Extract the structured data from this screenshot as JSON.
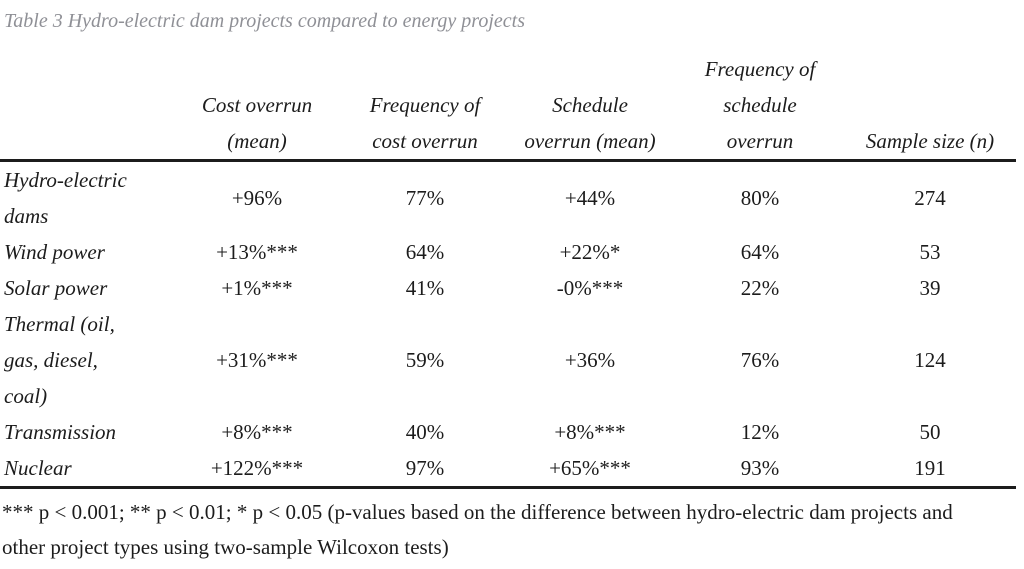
{
  "caption": "Table 3 Hydro-electric dam projects compared to energy projects",
  "columns": [
    "",
    "Cost overrun\n(mean)",
    "Frequency of\ncost overrun",
    "Schedule\noverrun (mean)",
    "Frequency of\nschedule\noverrun",
    "Sample size (n)"
  ],
  "rows": [
    {
      "label": "Hydro-electric\ndams",
      "values": [
        "+96%",
        "77%",
        "+44%",
        "80%",
        "274"
      ]
    },
    {
      "label": "Wind power",
      "values": [
        "+13%***",
        "64%",
        "+22%*",
        "64%",
        "53"
      ]
    },
    {
      "label": "Solar power",
      "values": [
        "+1%***",
        "41%",
        "-0%***",
        "22%",
        "39"
      ]
    },
    {
      "label": "Thermal (oil,\ngas, diesel,\ncoal)",
      "values": [
        "+31%***",
        "59%",
        "+36%",
        "76%",
        "124"
      ]
    },
    {
      "label": "Transmission",
      "values": [
        "+8%***",
        "40%",
        "+8%***",
        "12%",
        "50"
      ]
    },
    {
      "label": "Nuclear",
      "values": [
        "+122%***",
        "97%",
        "+65%***",
        "93%",
        "191"
      ]
    }
  ],
  "footnote": "*** p < 0.001; ** p < 0.01; * p < 0.05 (p-values based on the difference between hydro-electric dam projects and\nother project types using two-sample Wilcoxon tests)",
  "colors": {
    "caption_text": "#8f9096",
    "body_text": "#1c1c1c",
    "rule": "#1c1c1c",
    "background": "#ffffff"
  }
}
